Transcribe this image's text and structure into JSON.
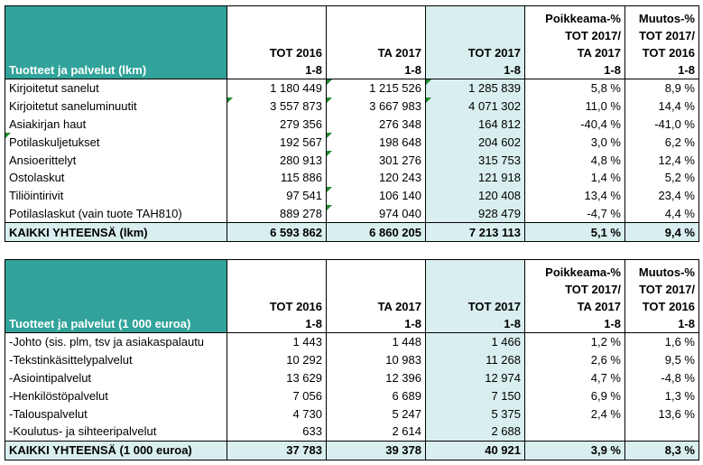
{
  "headers": {
    "col1": [
      "TOT 2016",
      "1-8"
    ],
    "col2": [
      "TA 2017",
      "1-8"
    ],
    "col3": [
      "TOT 2017",
      "1-8"
    ],
    "col4": [
      "Poikkeama-%",
      "TOT 2017/",
      "TA 2017",
      "1-8"
    ],
    "col5": [
      "Muutos-%",
      "TOT 2017/",
      "TOT 2016",
      "1-8"
    ]
  },
  "table1": {
    "label": "Tuotteet ja palvelut (lkm)",
    "rows": [
      {
        "name": "Kirjoitetut sanelut",
        "c1": "1 180 449",
        "c2": "1 215 526",
        "c3": "1 285 839",
        "c4": "5,8 %",
        "c5": "8,9 %"
      },
      {
        "name": "Kirjoitetut saneluminuutit",
        "c1": "3 557 873",
        "c2": "3 667 983",
        "c3": "4 071 302",
        "c4": "11,0 %",
        "c5": "14,4 %"
      },
      {
        "name": "Asiakirjan haut",
        "c1": "279 356",
        "c2": "276 348",
        "c3": "164 812",
        "c4": "-40,4 %",
        "c5": "-41,0 %"
      },
      {
        "name": "Potilaskuljetukset",
        "c1": "192 567",
        "c2": "198 648",
        "c3": "204 602",
        "c4": "3,0 %",
        "c5": "6,2 %"
      },
      {
        "name": "Ansioerittelyt",
        "c1": "280 913",
        "c2": "301 276",
        "c3": "315 753",
        "c4": "4,8 %",
        "c5": "12,4 %"
      },
      {
        "name": "Ostolaskut",
        "c1": "115 886",
        "c2": "120 243",
        "c3": "121 918",
        "c4": "1,4 %",
        "c5": "5,2 %"
      },
      {
        "name": "Tiliöintirivit",
        "c1": "97 541",
        "c2": "106 140",
        "c3": "120 408",
        "c4": "13,4 %",
        "c5": "23,4 %"
      },
      {
        "name": "Potilaslaskut (vain tuote TAH810)",
        "c1": "889 278",
        "c2": "974 040",
        "c3": "928 479",
        "c4": "-4,7 %",
        "c5": "4,4 %"
      }
    ],
    "total": {
      "name": "KAIKKI YHTEENSÄ (lkm)",
      "c1": "6 593 862",
      "c2": "6 860 205",
      "c3": "7 213 113",
      "c4": "5,1 %",
      "c5": "9,4 %"
    }
  },
  "table2": {
    "label": "Tuotteet ja palvelut (1 000 euroa)",
    "rows": [
      {
        "name": "-Johto (sis. plm, tsv ja asiakaspalautu",
        "c1": "1 443",
        "c2": "1 448",
        "c3": "1 466",
        "c4": "1,2 %",
        "c5": "1,6 %"
      },
      {
        "name": "-Tekstinkäsittelypalvelut",
        "c1": "10 292",
        "c2": "10 983",
        "c3": "11 268",
        "c4": "2,6 %",
        "c5": "9,5 %"
      },
      {
        "name": "-Asiointipalvelut",
        "c1": "13 629",
        "c2": "12 396",
        "c3": "12 974",
        "c4": "4,7 %",
        "c5": "-4,8 %"
      },
      {
        "name": "-Henkilöstöpalvelut",
        "c1": "7 056",
        "c2": "6 689",
        "c3": "7 150",
        "c4": "6,9 %",
        "c5": "1,3 %"
      },
      {
        "name": "-Talouspalvelut",
        "c1": "4 730",
        "c2": "5 247",
        "c3": "5 375",
        "c4": "2,4 %",
        "c5": "13,6 %"
      },
      {
        "name": "-Koulutus- ja sihteeripalvelut",
        "c1": "633",
        "c2": "2 614",
        "c3": "2 688",
        "c4": "",
        "c5": ""
      }
    ],
    "total": {
      "name": "KAIKKI YHTEENSÄ (1 000 euroa)",
      "c1": "37 783",
      "c2": "39 378",
      "c3": "40 921",
      "c4": "3,9 %",
      "c5": "8,3 %"
    }
  },
  "colors": {
    "header_teal": "#31a39a",
    "highlight": "#d9eeee",
    "marker_green": "#1e8a2e"
  }
}
